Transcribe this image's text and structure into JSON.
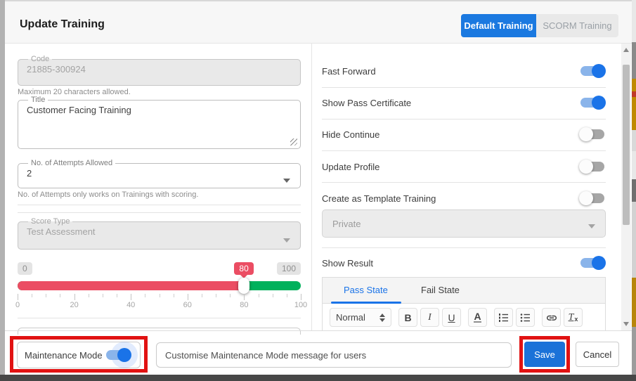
{
  "dialog": {
    "title": "Update Training"
  },
  "header_tabs": [
    {
      "label": "Default Training",
      "active": true
    },
    {
      "label": "SCORM Training",
      "active": false
    }
  ],
  "form": {
    "code": {
      "label": "Code",
      "value": "21885-300924",
      "helper": "Maximum 20 characters allowed."
    },
    "title": {
      "label": "Title",
      "value": "Customer Facing Training"
    },
    "attempts": {
      "label": "No. of Attempts Allowed",
      "value": "2",
      "helper": "No. of Attempts only works on Trainings with scoring."
    },
    "score_type": {
      "label": "Score Type",
      "value": "Test Assessment"
    },
    "pass_slider": {
      "min_badge": "0",
      "max_badge": "100",
      "value": 80,
      "value_badge": "80",
      "range": [
        0,
        100
      ],
      "tick_labels": [
        "0",
        "20",
        "40",
        "60",
        "80",
        "100"
      ]
    }
  },
  "options": {
    "toggles": [
      {
        "label": "Fast Forward",
        "on": true
      },
      {
        "label": "Show Pass Certificate",
        "on": true
      },
      {
        "label": "Hide Continue",
        "on": false
      },
      {
        "label": "Update Profile",
        "on": false
      },
      {
        "label": "Create as Template Training",
        "on": false
      }
    ],
    "template_visibility": {
      "value": "Private"
    },
    "show_result": {
      "label": "Show Result",
      "on": true
    }
  },
  "result_editor": {
    "tabs": [
      {
        "label": "Pass State",
        "active": true
      },
      {
        "label": "Fail State",
        "active": false
      }
    ],
    "format_select": {
      "value": "Normal"
    },
    "buttons": {
      "bold": "B",
      "italic": "I",
      "underline": "U",
      "color": "A",
      "clear_main": "T",
      "clear_sub": "x"
    },
    "icon_buttons": [
      "ordered-list-icon",
      "bullet-list-icon",
      "link-icon",
      "clear-format-icon"
    ]
  },
  "footer": {
    "maintenance": {
      "label": "Maintenance Mode",
      "on": true
    },
    "message_input": {
      "value": "",
      "placeholder": "Customise Maintenance Mode message for users"
    },
    "save_label": "Save",
    "cancel_label": "Cancel"
  },
  "colors": {
    "accent_blue": "#1b79e0",
    "switch_on_knob": "#1a73e8",
    "switch_on_track": "#8ab4ea",
    "slider_red": "#eb4d63",
    "slider_green": "#00b15c",
    "annotation_red": "#e11212",
    "inactive_tab_bg": "#e9e9e9"
  }
}
